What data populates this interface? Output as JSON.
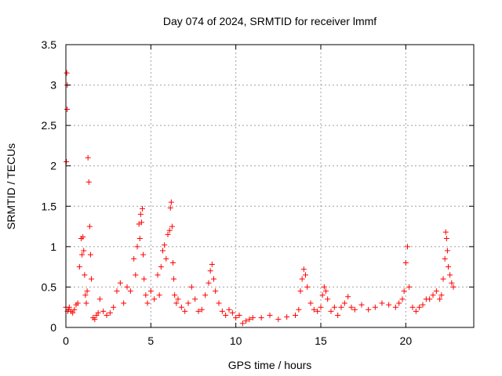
{
  "chart_data": {
    "type": "scatter",
    "title": "Day 074 of 2024, SRMTID for receiver lmmf",
    "xlabel": "GPS time / hours",
    "ylabel": "SRMTID / TECUs",
    "xlim": [
      0,
      24
    ],
    "ylim": [
      0,
      3.5
    ],
    "grid": true,
    "marker": "+",
    "color": "#ff0000",
    "x_ticks": [
      0,
      5,
      10,
      15,
      20
    ],
    "x_tick_labels": [
      "0",
      "5",
      "10",
      "15",
      "20"
    ],
    "y_ticks": [
      0,
      0.5,
      1,
      1.5,
      2,
      2.5,
      3,
      3.5
    ],
    "y_tick_labels": [
      "0",
      "0.5",
      "1",
      "1.5",
      "2",
      "2.5",
      "3",
      "3.5"
    ],
    "series": [
      {
        "name": "lmmf",
        "x": [
          0.0,
          0.03,
          0.05,
          0.07,
          0.08,
          0.1,
          0.15,
          0.2,
          0.3,
          0.4,
          0.5,
          0.6,
          0.7,
          0.8,
          0.9,
          0.95,
          1.0,
          1.05,
          1.1,
          1.15,
          1.2,
          1.25,
          1.3,
          1.35,
          1.4,
          1.45,
          1.5,
          1.6,
          1.7,
          1.8,
          1.9,
          2.0,
          2.2,
          2.4,
          2.6,
          2.8,
          3.0,
          3.2,
          3.4,
          3.6,
          3.8,
          4.0,
          4.1,
          4.2,
          4.3,
          4.35,
          4.4,
          4.45,
          4.5,
          4.55,
          4.6,
          4.7,
          4.8,
          5.0,
          5.2,
          5.4,
          5.5,
          5.6,
          5.7,
          5.8,
          5.9,
          6.0,
          6.1,
          6.15,
          6.2,
          6.25,
          6.3,
          6.35,
          6.4,
          6.5,
          6.6,
          6.8,
          7.0,
          7.2,
          7.4,
          7.6,
          7.8,
          8.0,
          8.2,
          8.4,
          8.5,
          8.6,
          8.7,
          8.8,
          9.0,
          9.2,
          9.4,
          9.6,
          9.8,
          10.0,
          10.2,
          10.4,
          10.6,
          10.8,
          11.0,
          11.5,
          12.0,
          12.5,
          13.0,
          13.5,
          13.7,
          13.8,
          13.9,
          14.0,
          14.1,
          14.2,
          14.4,
          14.6,
          14.8,
          15.0,
          15.1,
          15.2,
          15.3,
          15.4,
          15.6,
          15.8,
          16.0,
          16.2,
          16.4,
          16.6,
          16.8,
          17.0,
          17.4,
          17.8,
          18.2,
          18.6,
          19.0,
          19.4,
          19.6,
          19.8,
          19.9,
          20.0,
          20.1,
          20.2,
          20.4,
          20.6,
          20.8,
          21.0,
          21.2,
          21.4,
          21.6,
          21.8,
          22.0,
          22.1,
          22.2,
          22.3,
          22.35,
          22.4,
          22.45,
          22.5,
          22.6,
          22.7,
          22.8
        ],
        "y": [
          0.25,
          2.05,
          3.15,
          2.7,
          3.0,
          0.2,
          0.22,
          0.25,
          0.2,
          0.18,
          0.22,
          0.28,
          0.3,
          0.75,
          1.1,
          0.9,
          1.12,
          0.95,
          0.65,
          0.4,
          0.3,
          0.45,
          2.1,
          1.8,
          1.25,
          0.9,
          0.6,
          0.12,
          0.1,
          0.15,
          0.18,
          0.35,
          0.2,
          0.15,
          0.18,
          0.25,
          0.45,
          0.55,
          0.3,
          0.5,
          0.45,
          0.85,
          0.65,
          1.0,
          1.28,
          1.1,
          1.4,
          1.3,
          1.47,
          0.9,
          0.6,
          0.4,
          0.3,
          0.45,
          0.35,
          0.65,
          0.4,
          0.75,
          0.95,
          1.02,
          0.85,
          1.15,
          1.2,
          1.48,
          1.55,
          1.25,
          0.8,
          0.6,
          0.4,
          0.3,
          0.35,
          0.25,
          0.2,
          0.3,
          0.5,
          0.35,
          0.2,
          0.22,
          0.4,
          0.55,
          0.7,
          0.78,
          0.6,
          0.45,
          0.3,
          0.2,
          0.15,
          0.22,
          0.18,
          0.12,
          0.15,
          0.05,
          0.08,
          0.1,
          0.12,
          0.12,
          0.15,
          0.1,
          0.13,
          0.15,
          0.22,
          0.45,
          0.6,
          0.72,
          0.65,
          0.5,
          0.3,
          0.22,
          0.2,
          0.25,
          0.4,
          0.5,
          0.45,
          0.35,
          0.2,
          0.25,
          0.15,
          0.25,
          0.3,
          0.38,
          0.25,
          0.22,
          0.28,
          0.22,
          0.25,
          0.3,
          0.28,
          0.25,
          0.3,
          0.35,
          0.45,
          0.8,
          1.0,
          0.5,
          0.25,
          0.2,
          0.25,
          0.28,
          0.35,
          0.35,
          0.4,
          0.45,
          0.35,
          0.4,
          0.6,
          0.85,
          1.18,
          1.1,
          0.95,
          0.75,
          0.65,
          0.55,
          0.5
        ]
      }
    ]
  }
}
